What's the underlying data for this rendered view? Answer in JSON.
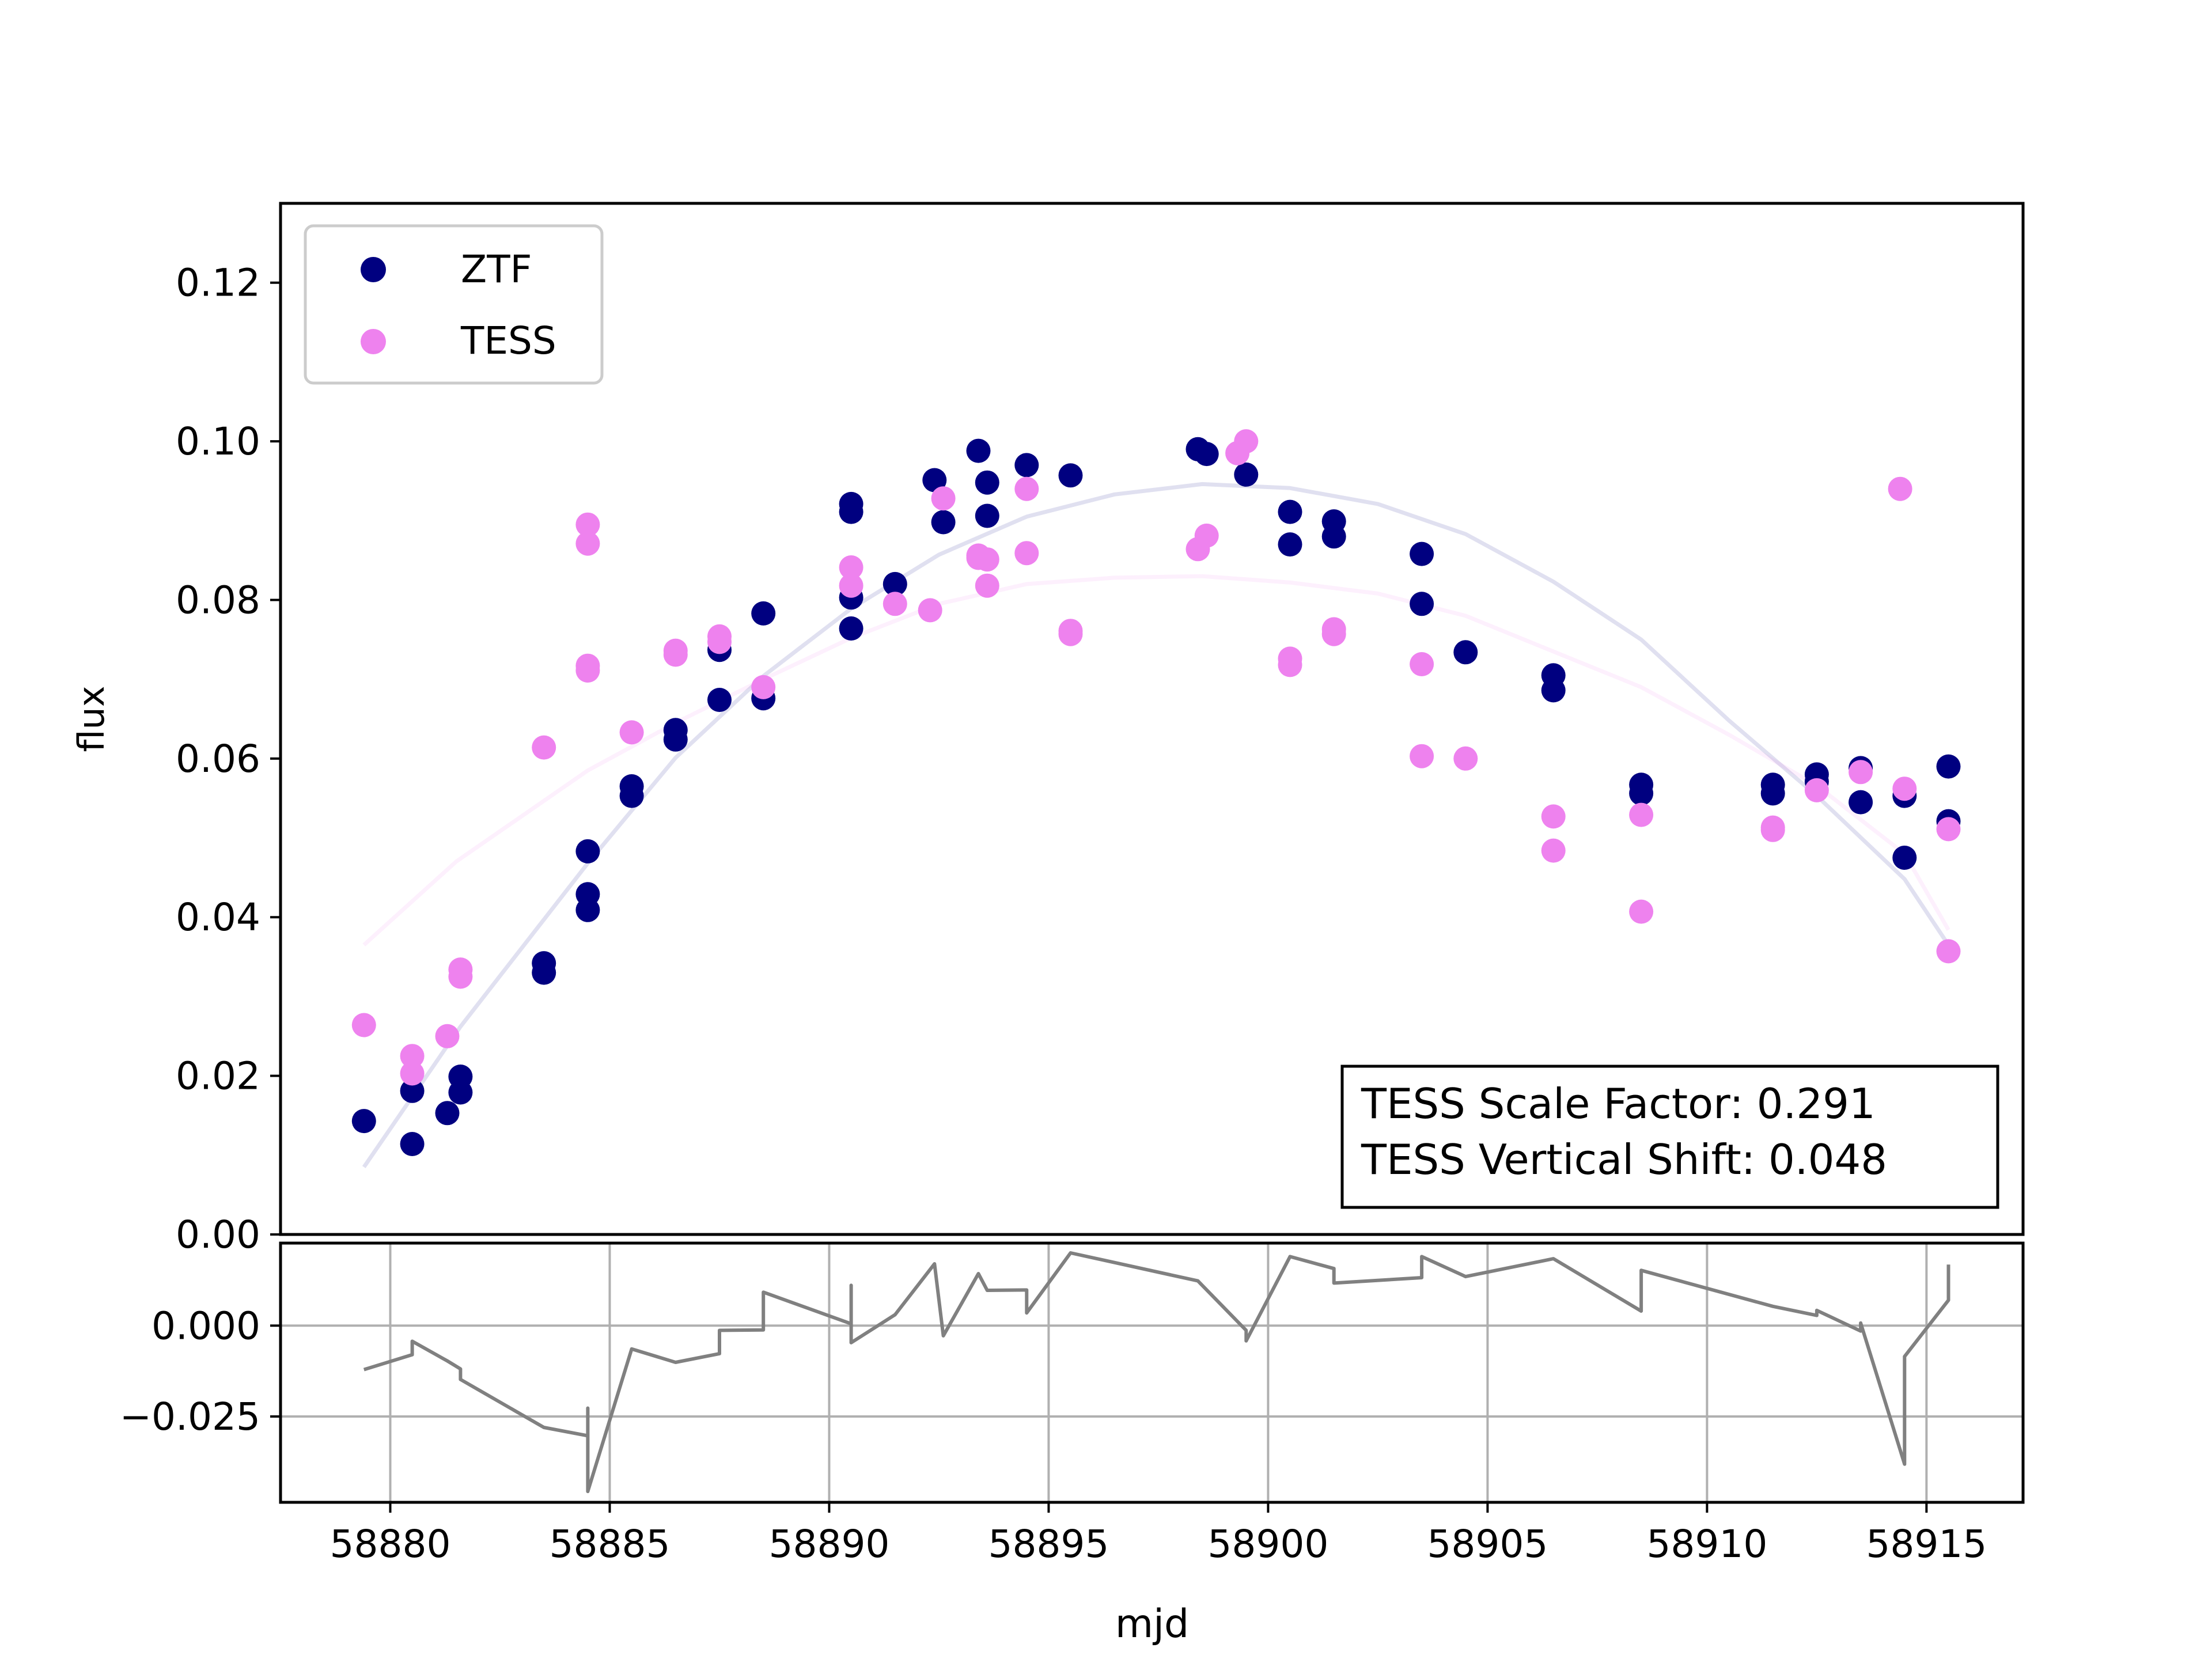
{
  "colors": {
    "ztf": "#000080",
    "tess": "#EE82EE",
    "residual": "#808080",
    "grid": "#b0b0b0",
    "frame": "#000000"
  },
  "legend": {
    "ztf_label": "ZTF",
    "tess_label": "TESS",
    "placement": "upper-left"
  },
  "annotation": {
    "line1": "TESS Scale Factor: 0.291",
    "line2": "TESS Vertical Shift: 0.048",
    "placement": "lower-right"
  },
  "axes": {
    "xlabel": "mjd",
    "ylabel": "flux"
  },
  "chart_data": [
    {
      "type": "scatter",
      "panel": "main",
      "title": "",
      "xlabel": "",
      "ylabel": "flux",
      "xlim": [
        58877.5,
        58917.2
      ],
      "ylim": [
        0.0,
        0.13
      ],
      "grid": false,
      "y_ticks": [
        "0.00",
        "0.02",
        "0.04",
        "0.06",
        "0.08",
        "0.10",
        "0.12"
      ],
      "y_tick_values": [
        0.0,
        0.02,
        0.04,
        0.06,
        0.08,
        0.1,
        0.12
      ],
      "series": [
        {
          "name": "ZTF",
          "kind": "scatter",
          "points": [
            [
              58879.4,
              0.0143
            ],
            [
              58880.5,
              0.0181
            ],
            [
              58880.5,
              0.0114
            ],
            [
              58881.3,
              0.0153
            ],
            [
              58881.6,
              0.0199
            ],
            [
              58881.6,
              0.0179
            ],
            [
              58883.5,
              0.0342
            ],
            [
              58883.5,
              0.033
            ],
            [
              58884.5,
              0.0483
            ],
            [
              58884.5,
              0.0429
            ],
            [
              58884.5,
              0.0409
            ],
            [
              58885.5,
              0.0565
            ],
            [
              58885.5,
              0.0553
            ],
            [
              58886.5,
              0.0636
            ],
            [
              58886.5,
              0.0624
            ],
            [
              58887.5,
              0.0737
            ],
            [
              58887.5,
              0.0674
            ],
            [
              58888.5,
              0.0783
            ],
            [
              58888.5,
              0.0676
            ],
            [
              58890.5,
              0.0921
            ],
            [
              58890.5,
              0.0911
            ],
            [
              58890.5,
              0.0803
            ],
            [
              58890.5,
              0.0764
            ],
            [
              58891.5,
              0.082
            ],
            [
              58892.4,
              0.0951
            ],
            [
              58892.6,
              0.0898
            ],
            [
              58893.4,
              0.0988
            ],
            [
              58893.6,
              0.0948
            ],
            [
              58893.6,
              0.0906
            ],
            [
              58894.5,
              0.097
            ],
            [
              58895.5,
              0.0957
            ],
            [
              58898.4,
              0.099
            ],
            [
              58898.6,
              0.0984
            ],
            [
              58899.5,
              0.0958
            ],
            [
              58900.5,
              0.0911
            ],
            [
              58900.5,
              0.087
            ],
            [
              58901.5,
              0.0899
            ],
            [
              58901.5,
              0.088
            ],
            [
              58903.5,
              0.0858
            ],
            [
              58903.5,
              0.0795
            ],
            [
              58904.5,
              0.0734
            ],
            [
              58906.5,
              0.0705
            ],
            [
              58906.5,
              0.0686
            ],
            [
              58908.5,
              0.0567
            ],
            [
              58908.5,
              0.0556
            ],
            [
              58911.5,
              0.0567
            ],
            [
              58911.5,
              0.0556
            ],
            [
              58912.5,
              0.058
            ],
            [
              58912.5,
              0.0571
            ],
            [
              58913.5,
              0.0588
            ],
            [
              58913.5,
              0.0545
            ],
            [
              58914.5,
              0.0553
            ],
            [
              58914.5,
              0.0475
            ],
            [
              58915.5,
              0.059
            ],
            [
              58915.5,
              0.0521
            ]
          ]
        },
        {
          "name": "TESS",
          "kind": "scatter",
          "points": [
            [
              58879.4,
              0.0264
            ],
            [
              58880.5,
              0.0225
            ],
            [
              58880.5,
              0.0203
            ],
            [
              58881.3,
              0.025
            ],
            [
              58881.6,
              0.0334
            ],
            [
              58881.6,
              0.0325
            ],
            [
              58883.5,
              0.0614
            ],
            [
              58884.5,
              0.0895
            ],
            [
              58884.5,
              0.0871
            ],
            [
              58884.5,
              0.0717
            ],
            [
              58884.5,
              0.0711
            ],
            [
              58885.5,
              0.0633
            ],
            [
              58886.5,
              0.0736
            ],
            [
              58886.5,
              0.0731
            ],
            [
              58887.5,
              0.0754
            ],
            [
              58887.5,
              0.0747
            ],
            [
              58888.5,
              0.069
            ],
            [
              58890.5,
              0.0841
            ],
            [
              58890.5,
              0.0818
            ],
            [
              58891.5,
              0.0795
            ],
            [
              58892.3,
              0.0787
            ],
            [
              58892.6,
              0.0928
            ],
            [
              58893.4,
              0.0856
            ],
            [
              58893.4,
              0.0853
            ],
            [
              58893.6,
              0.0851
            ],
            [
              58893.6,
              0.0818
            ],
            [
              58894.5,
              0.094
            ],
            [
              58894.5,
              0.0859
            ],
            [
              58895.5,
              0.0761
            ],
            [
              58895.5,
              0.0757
            ],
            [
              58898.4,
              0.0864
            ],
            [
              58898.6,
              0.0881
            ],
            [
              58899.3,
              0.0985
            ],
            [
              58899.5,
              0.1
            ],
            [
              58900.5,
              0.0726
            ],
            [
              58900.5,
              0.0718
            ],
            [
              58901.5,
              0.0763
            ],
            [
              58901.5,
              0.0757
            ],
            [
              58903.5,
              0.0719
            ],
            [
              58903.5,
              0.0603
            ],
            [
              58904.5,
              0.06
            ],
            [
              58906.5,
              0.0527
            ],
            [
              58906.5,
              0.0484
            ],
            [
              58908.5,
              0.0529
            ],
            [
              58908.5,
              0.0407
            ],
            [
              58911.5,
              0.0513
            ],
            [
              58911.5,
              0.051
            ],
            [
              58912.5,
              0.056
            ],
            [
              58913.5,
              0.0583
            ],
            [
              58914.4,
              0.094
            ],
            [
              58914.5,
              0.0562
            ],
            [
              58915.5,
              0.0511
            ],
            [
              58915.5,
              0.0357
            ]
          ]
        },
        {
          "name": "ZTF-fit",
          "kind": "line",
          "points": [
            [
              58879.4,
              0.0085
            ],
            [
              58881.6,
              0.0262
            ],
            [
              58884.5,
              0.0468
            ],
            [
              58886.5,
              0.0601
            ],
            [
              58888.5,
              0.0704
            ],
            [
              58890.5,
              0.0789
            ],
            [
              58892.5,
              0.0857
            ],
            [
              58894.5,
              0.0905
            ],
            [
              58896.5,
              0.0933
            ],
            [
              58898.5,
              0.0946
            ],
            [
              58900.5,
              0.0941
            ],
            [
              58902.5,
              0.0921
            ],
            [
              58904.5,
              0.0883
            ],
            [
              58906.5,
              0.0823
            ],
            [
              58908.5,
              0.075
            ],
            [
              58910.5,
              0.0648
            ],
            [
              58912.5,
              0.0553
            ],
            [
              58914.5,
              0.0448
            ],
            [
              58915.5,
              0.0365
            ]
          ]
        },
        {
          "name": "TESS-fit",
          "kind": "line",
          "points": [
            [
              58879.4,
              0.0365
            ],
            [
              58881.5,
              0.047
            ],
            [
              58884.5,
              0.0585
            ],
            [
              58886.5,
              0.0645
            ],
            [
              58888.5,
              0.07
            ],
            [
              58890.5,
              0.0752
            ],
            [
              58892.5,
              0.0795
            ],
            [
              58894.5,
              0.082
            ],
            [
              58896.5,
              0.0828
            ],
            [
              58898.5,
              0.083
            ],
            [
              58900.5,
              0.0822
            ],
            [
              58902.5,
              0.0808
            ],
            [
              58904.5,
              0.078
            ],
            [
              58906.5,
              0.0735
            ],
            [
              58908.5,
              0.069
            ],
            [
              58910.5,
              0.063
            ],
            [
              58912.5,
              0.0566
            ],
            [
              58914.5,
              0.048
            ],
            [
              58915.5,
              0.0384
            ]
          ]
        }
      ]
    },
    {
      "type": "line",
      "panel": "residual",
      "title": "",
      "xlabel": "mjd",
      "ylabel": "",
      "xlim": [
        58877.5,
        58917.2
      ],
      "ylim": [
        -0.0486,
        0.0227
      ],
      "grid": true,
      "x_ticks": [
        "58880",
        "58885",
        "58890",
        "58895",
        "58900",
        "58905",
        "58910",
        "58915"
      ],
      "x_tick_values": [
        58880,
        58885,
        58890,
        58895,
        58900,
        58905,
        58910,
        58915
      ],
      "y_ticks": [
        "−0.025",
        "0.000"
      ],
      "y_tick_values": [
        -0.025,
        0.0
      ],
      "series": [
        {
          "name": "residual",
          "points": [
            [
              58879.4,
              -0.0121
            ],
            [
              58880.5,
              -0.008
            ],
            [
              58880.5,
              -0.0043
            ],
            [
              58881.3,
              -0.0097
            ],
            [
              58881.6,
              -0.0119
            ],
            [
              58881.6,
              -0.0148
            ],
            [
              58883.5,
              -0.028
            ],
            [
              58884.5,
              -0.0303
            ],
            [
              58884.5,
              -0.0227
            ],
            [
              58884.5,
              -0.0456
            ],
            [
              58885.5,
              -0.0064
            ],
            [
              58886.5,
              -0.0101
            ],
            [
              58887.5,
              -0.0077
            ],
            [
              58887.5,
              -0.0013
            ],
            [
              58888.5,
              -0.0012
            ],
            [
              58888.5,
              0.0092
            ],
            [
              58890.5,
              0.0005
            ],
            [
              58890.5,
              0.0111
            ],
            [
              58890.5,
              -0.0047
            ],
            [
              58891.5,
              0.003
            ],
            [
              58892.4,
              0.017
            ],
            [
              58892.6,
              -0.0028
            ],
            [
              58893.4,
              0.0143
            ],
            [
              58893.6,
              0.0097
            ],
            [
              58894.5,
              0.0098
            ],
            [
              58894.5,
              0.0035
            ],
            [
              58895.5,
              0.02
            ],
            [
              58898.4,
              0.0123
            ],
            [
              58899.5,
              -0.0013
            ],
            [
              58899.5,
              -0.0042
            ],
            [
              58900.5,
              0.019
            ],
            [
              58901.5,
              0.0157
            ],
            [
              58901.5,
              0.0117
            ],
            [
              58903.5,
              0.0132
            ],
            [
              58903.5,
              0.019
            ],
            [
              58904.5,
              0.0135
            ],
            [
              58906.5,
              0.0184
            ],
            [
              58908.5,
              0.004
            ],
            [
              58908.5,
              0.0152
            ],
            [
              58911.5,
              0.0053
            ],
            [
              58912.5,
              0.0028
            ],
            [
              58912.5,
              0.0042
            ],
            [
              58913.5,
              -0.0015
            ],
            [
              58913.5,
              0.0007
            ],
            [
              58914.5,
              -0.0381
            ],
            [
              58914.5,
              -0.0085
            ],
            [
              58915.5,
              0.007
            ],
            [
              58915.5,
              0.0168
            ]
          ]
        }
      ]
    }
  ]
}
